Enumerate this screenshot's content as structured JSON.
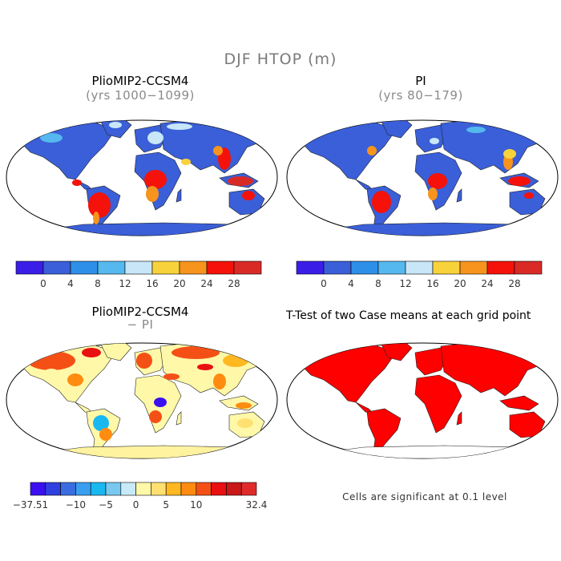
{
  "figure": {
    "title": "DJF HTOP (m)"
  },
  "panels": [
    {
      "title": "PlioMIP2-CCSM4",
      "subtitle": "(yrs 1000−1099)"
    },
    {
      "title": "PI",
      "subtitle": "(yrs 80−179)"
    },
    {
      "title": "PlioMIP2-CCSM4",
      "subtitle": "− PI"
    },
    {
      "title": "T-Test of two Case means at each grid point",
      "subtitle": ""
    }
  ],
  "colorbar_top": {
    "colors": [
      "#3a1ee8",
      "#3a5fd8",
      "#2e8fe8",
      "#55b8ee",
      "#c8e6f8",
      "#f8d23a",
      "#f7941d",
      "#f4120a",
      "#d92a26"
    ],
    "tick_labels": [
      "0",
      "4",
      "8",
      "12",
      "16",
      "20",
      "24",
      "28"
    ]
  },
  "colorbar_diff": {
    "colors": [
      "#3a10f0",
      "#3040e0",
      "#3a6ee0",
      "#3a9ef0",
      "#1ab8f0",
      "#78c8f0",
      "#c8eaf8",
      "#fff8a8",
      "#ffe070",
      "#ffb820",
      "#ff8c10",
      "#f45016",
      "#e81010",
      "#c81818",
      "#e02a2a"
    ],
    "tick_labels": [
      "−37.51",
      "−10",
      "−5",
      "0",
      "5",
      "10",
      "32.4"
    ]
  },
  "ttest_note": "Cells are significant at 0.1 level",
  "ttest_color": "#ff0000"
}
